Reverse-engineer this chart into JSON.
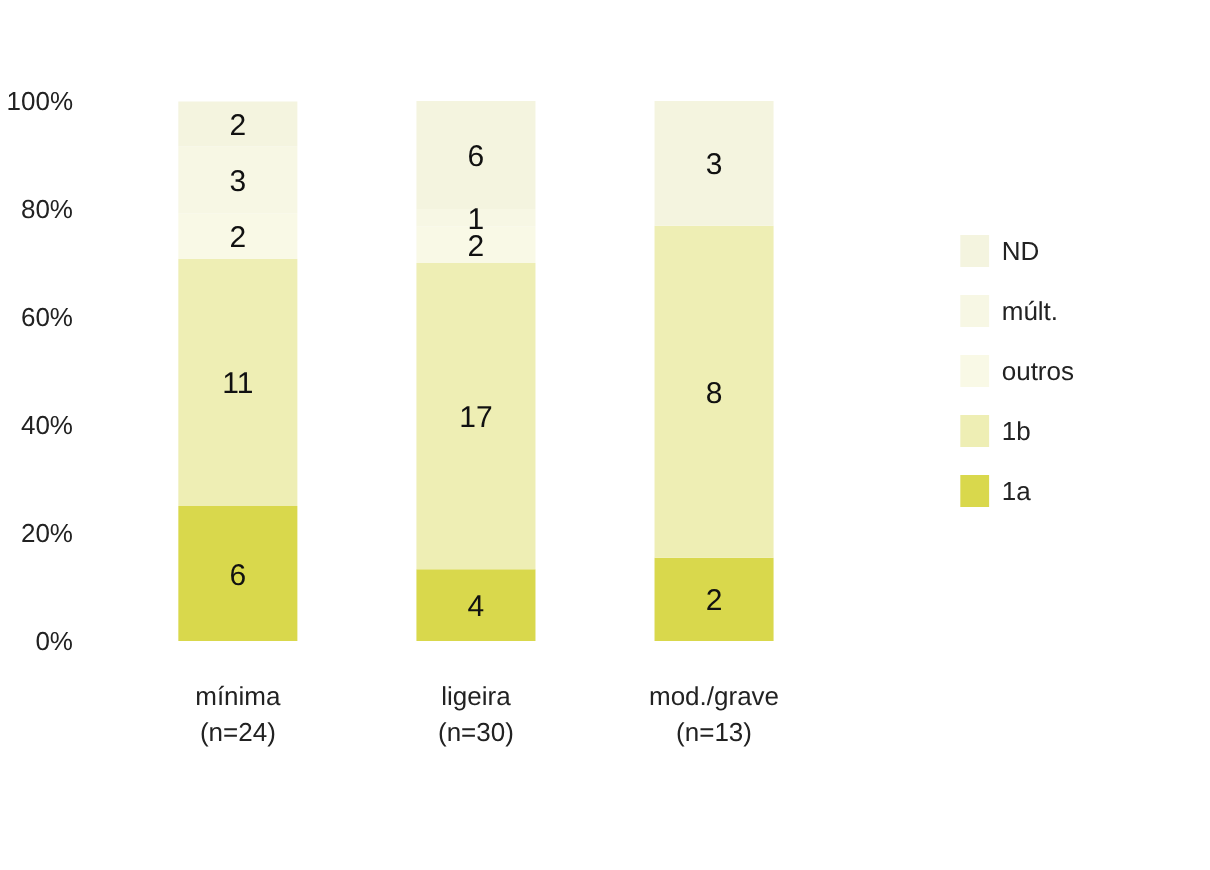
{
  "chart_data": {
    "type": "bar",
    "stacked": true,
    "categories": [
      "mínima\n(n=24)",
      "ligeira\n(n=30)",
      "mod./grave\n(n=13)"
    ],
    "series": [
      {
        "name": "1a",
        "color": "#d9d84c",
        "values": [
          25.0,
          13.3,
          15.4
        ]
      },
      {
        "name": "1b",
        "color": "#eeeeb4",
        "values": [
          45.8,
          56.7,
          61.5
        ]
      },
      {
        "name": "outros",
        "color": "#f9f9e6",
        "values": [
          8.3,
          6.7,
          null
        ]
      },
      {
        "name": "múlt.",
        "color": "#f7f7e4",
        "values": [
          12.5,
          3.3,
          null
        ]
      },
      {
        "name": "ND",
        "color": "#f4f4df",
        "values": [
          8.3,
          20.0,
          23.1
        ]
      }
    ],
    "annotations": [
      "6",
      "11",
      "2",
      "3",
      "2",
      "4",
      "17",
      "2",
      "1",
      "6",
      "2",
      "8",
      "3"
    ],
    "ylim": [
      0,
      100
    ],
    "yticks": [
      {
        "value": 0,
        "label": "0%"
      },
      {
        "value": 20,
        "label": "20%"
      },
      {
        "value": 40,
        "label": "40%"
      },
      {
        "value": 60,
        "label": "60%"
      },
      {
        "value": 80,
        "label": "80%"
      },
      {
        "value": 100,
        "label": "100%"
      }
    ],
    "grid": false,
    "legend": "right"
  }
}
